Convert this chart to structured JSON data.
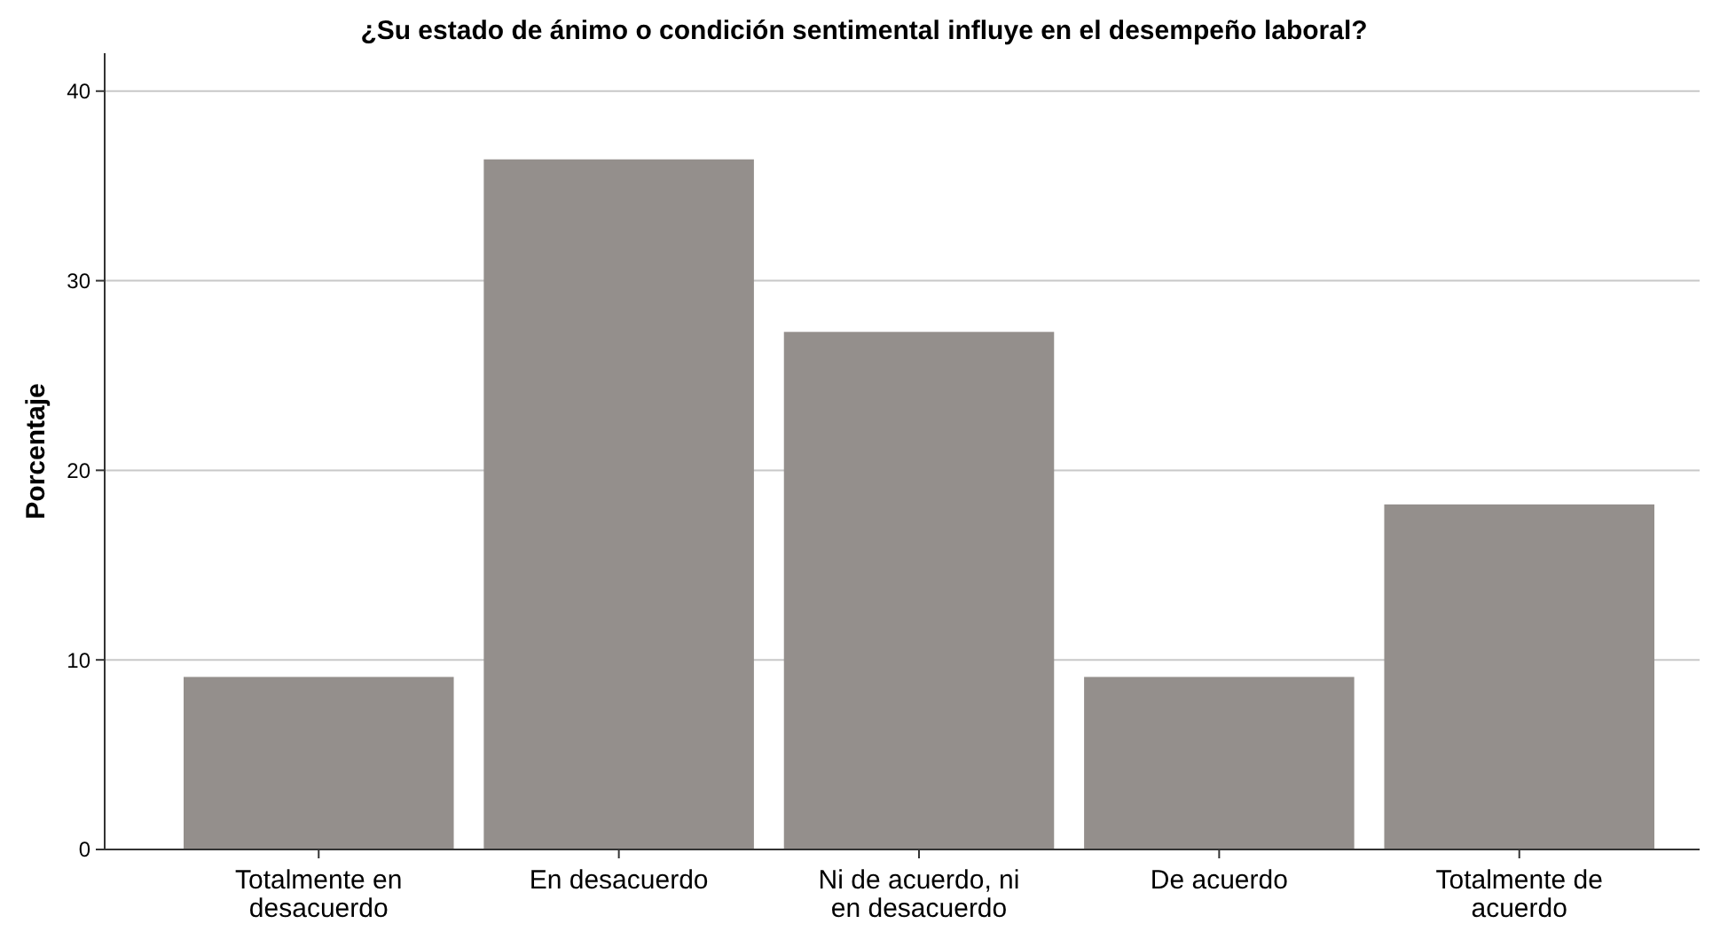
{
  "chart_data": {
    "type": "bar",
    "title": "¿Su estado de ánimo o condición sentimental influye en el desempeño laboral?",
    "ylabel": "Porcentaje",
    "categories": [
      "Totalmente en desacuerdo",
      "En desacuerdo",
      "Ni de acuerdo, ni en desacuerdo",
      "De acuerdo",
      "Totalmente de acuerdo"
    ],
    "values": [
      9.1,
      36.4,
      27.3,
      9.1,
      18.2
    ],
    "color": "#948f8c",
    "ylim": [
      0,
      42
    ],
    "yticks": [
      0,
      10,
      20,
      30,
      40
    ],
    "grid": "y"
  }
}
